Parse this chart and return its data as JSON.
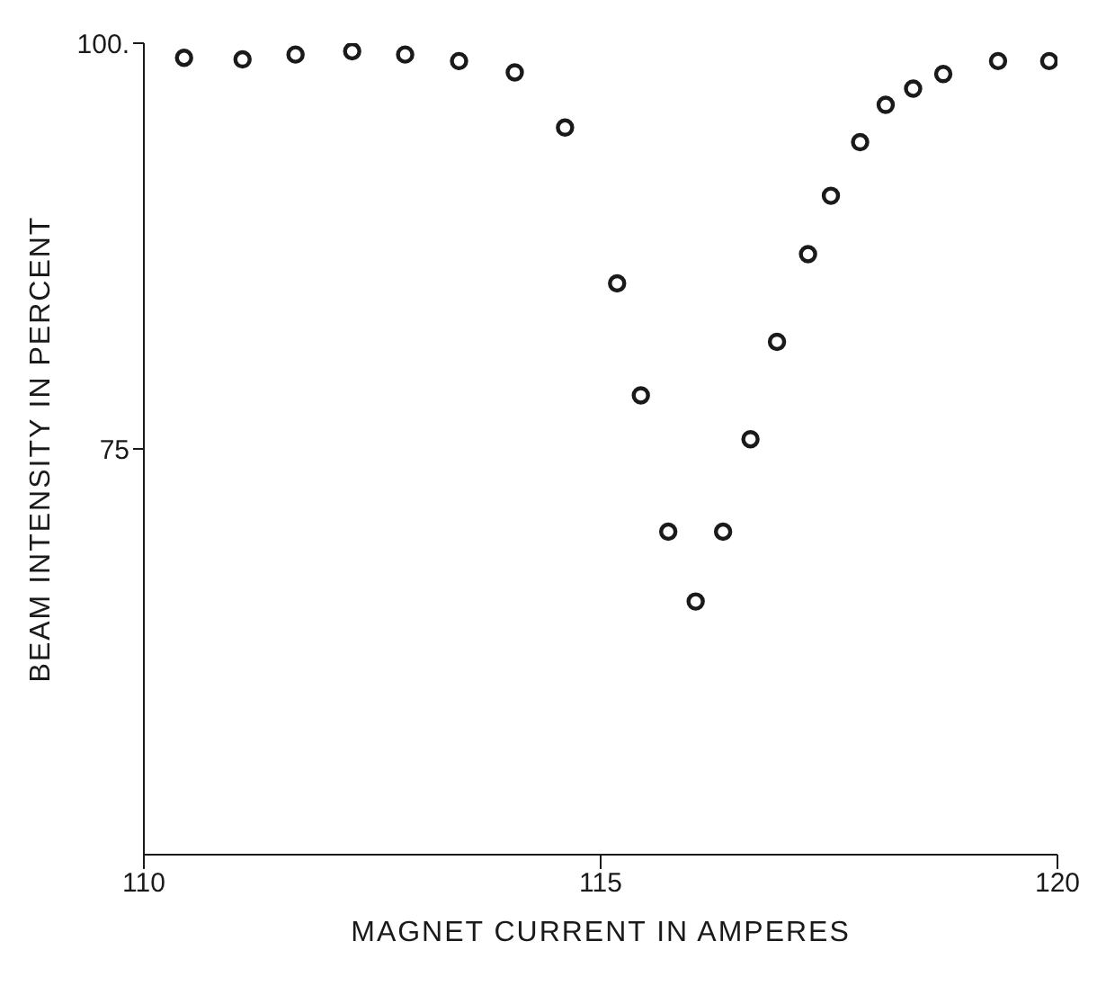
{
  "chart_data": {
    "type": "scatter",
    "xlabel": "MAGNET CURRENT IN AMPERES",
    "ylabel": "BEAM INTENSITY IN PERCENT",
    "x": [
      110.44,
      111.08,
      111.66,
      112.28,
      112.86,
      113.45,
      114.06,
      114.61,
      115.18,
      115.44,
      115.74,
      116.04,
      116.34,
      116.64,
      116.93,
      117.27,
      117.52,
      117.84,
      118.12,
      118.42,
      118.75,
      119.35,
      119.91
    ],
    "series": [
      {
        "color": "#1a1a1a",
        "values": [
          99.1,
          99.0,
          99.3,
          99.5,
          99.3,
          98.9,
          98.2,
          94.8,
          85.2,
          78.3,
          69.9,
          65.6,
          69.9,
          75.6,
          81.6,
          87.0,
          90.6,
          93.9,
          96.2,
          97.2,
          98.1,
          98.9,
          98.9
        ]
      }
    ],
    "xlim": [
      110,
      120
    ],
    "xticks": [
      110,
      115,
      120
    ],
    "ylim": [
      50,
      100
    ],
    "yticks": [
      {
        "value": 75,
        "label": "75"
      },
      {
        "value": 100,
        "label": "100."
      }
    ],
    "marker": "circle",
    "grid": false,
    "legend": false
  }
}
